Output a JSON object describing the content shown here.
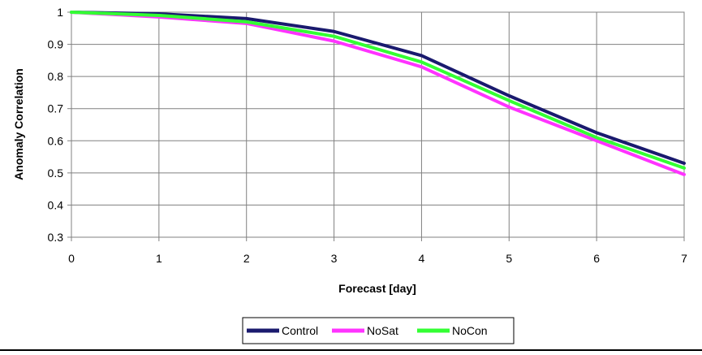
{
  "chart_data": {
    "type": "line",
    "title": "",
    "xlabel": "Forecast [day]",
    "ylabel": "Anomaly Correlation",
    "x": [
      0,
      1,
      2,
      3,
      4,
      5,
      6,
      7
    ],
    "xlim": [
      0,
      7
    ],
    "ylim": [
      0.3,
      1
    ],
    "xticks": [
      "0",
      "1",
      "2",
      "3",
      "4",
      "5",
      "6",
      "7"
    ],
    "yticks": [
      "0.3",
      "0.4",
      "0.5",
      "0.6",
      "0.7",
      "0.8",
      "0.9",
      "1"
    ],
    "grid": true,
    "legend_position": "bottom-center",
    "series": [
      {
        "name": "Control",
        "color": "#1a1a6e",
        "values": [
          1.0,
          0.995,
          0.98,
          0.94,
          0.865,
          0.74,
          0.625,
          0.53
        ]
      },
      {
        "name": "NoSat",
        "color": "#ff33ff",
        "values": [
          1.0,
          0.985,
          0.965,
          0.91,
          0.83,
          0.705,
          0.6,
          0.495
        ]
      },
      {
        "name": "NoCon",
        "color": "#33ff33",
        "values": [
          1.0,
          0.99,
          0.97,
          0.925,
          0.845,
          0.725,
          0.61,
          0.515
        ]
      }
    ]
  }
}
